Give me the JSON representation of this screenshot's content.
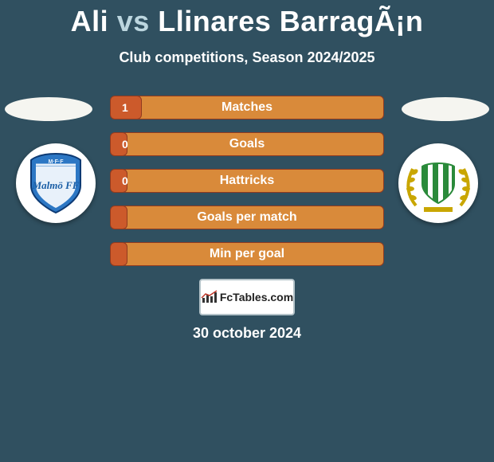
{
  "title": {
    "left": "Ali",
    "vs": "vs",
    "right": "Llinares BarragÃ¡n"
  },
  "subtitle": "Club competitions, Season 2024/2025",
  "background_color": "#305060",
  "bars": {
    "left_color": "#cc5a2b",
    "right_color": "#d98a3a",
    "border_color": "#913a1f",
    "track_width": 344,
    "rows": [
      {
        "label": "Matches",
        "left_value": "1",
        "left_width": 40,
        "right_width": 340
      },
      {
        "label": "Goals",
        "left_value": "0",
        "left_width": 22,
        "right_width": 330
      },
      {
        "label": "Hattricks",
        "left_value": "0",
        "left_width": 22,
        "right_width": 330
      },
      {
        "label": "Goals per match",
        "left_value": "",
        "left_width": 22,
        "right_width": 340
      },
      {
        "label": "Min per goal",
        "left_value": "",
        "left_width": 22,
        "right_width": 330
      }
    ]
  },
  "site_logo_text": "FcTables.com",
  "date": "30 october 2024",
  "club_left": {
    "bg": "#ffffff",
    "shield": "#2c77c4",
    "label": "Malmö FF",
    "label_color": "#1b5fa6"
  },
  "club_right": {
    "bg": "#ffffff",
    "wreath": "#c9a600",
    "stripes": [
      "#2a8a3a",
      "#ffffff"
    ]
  }
}
